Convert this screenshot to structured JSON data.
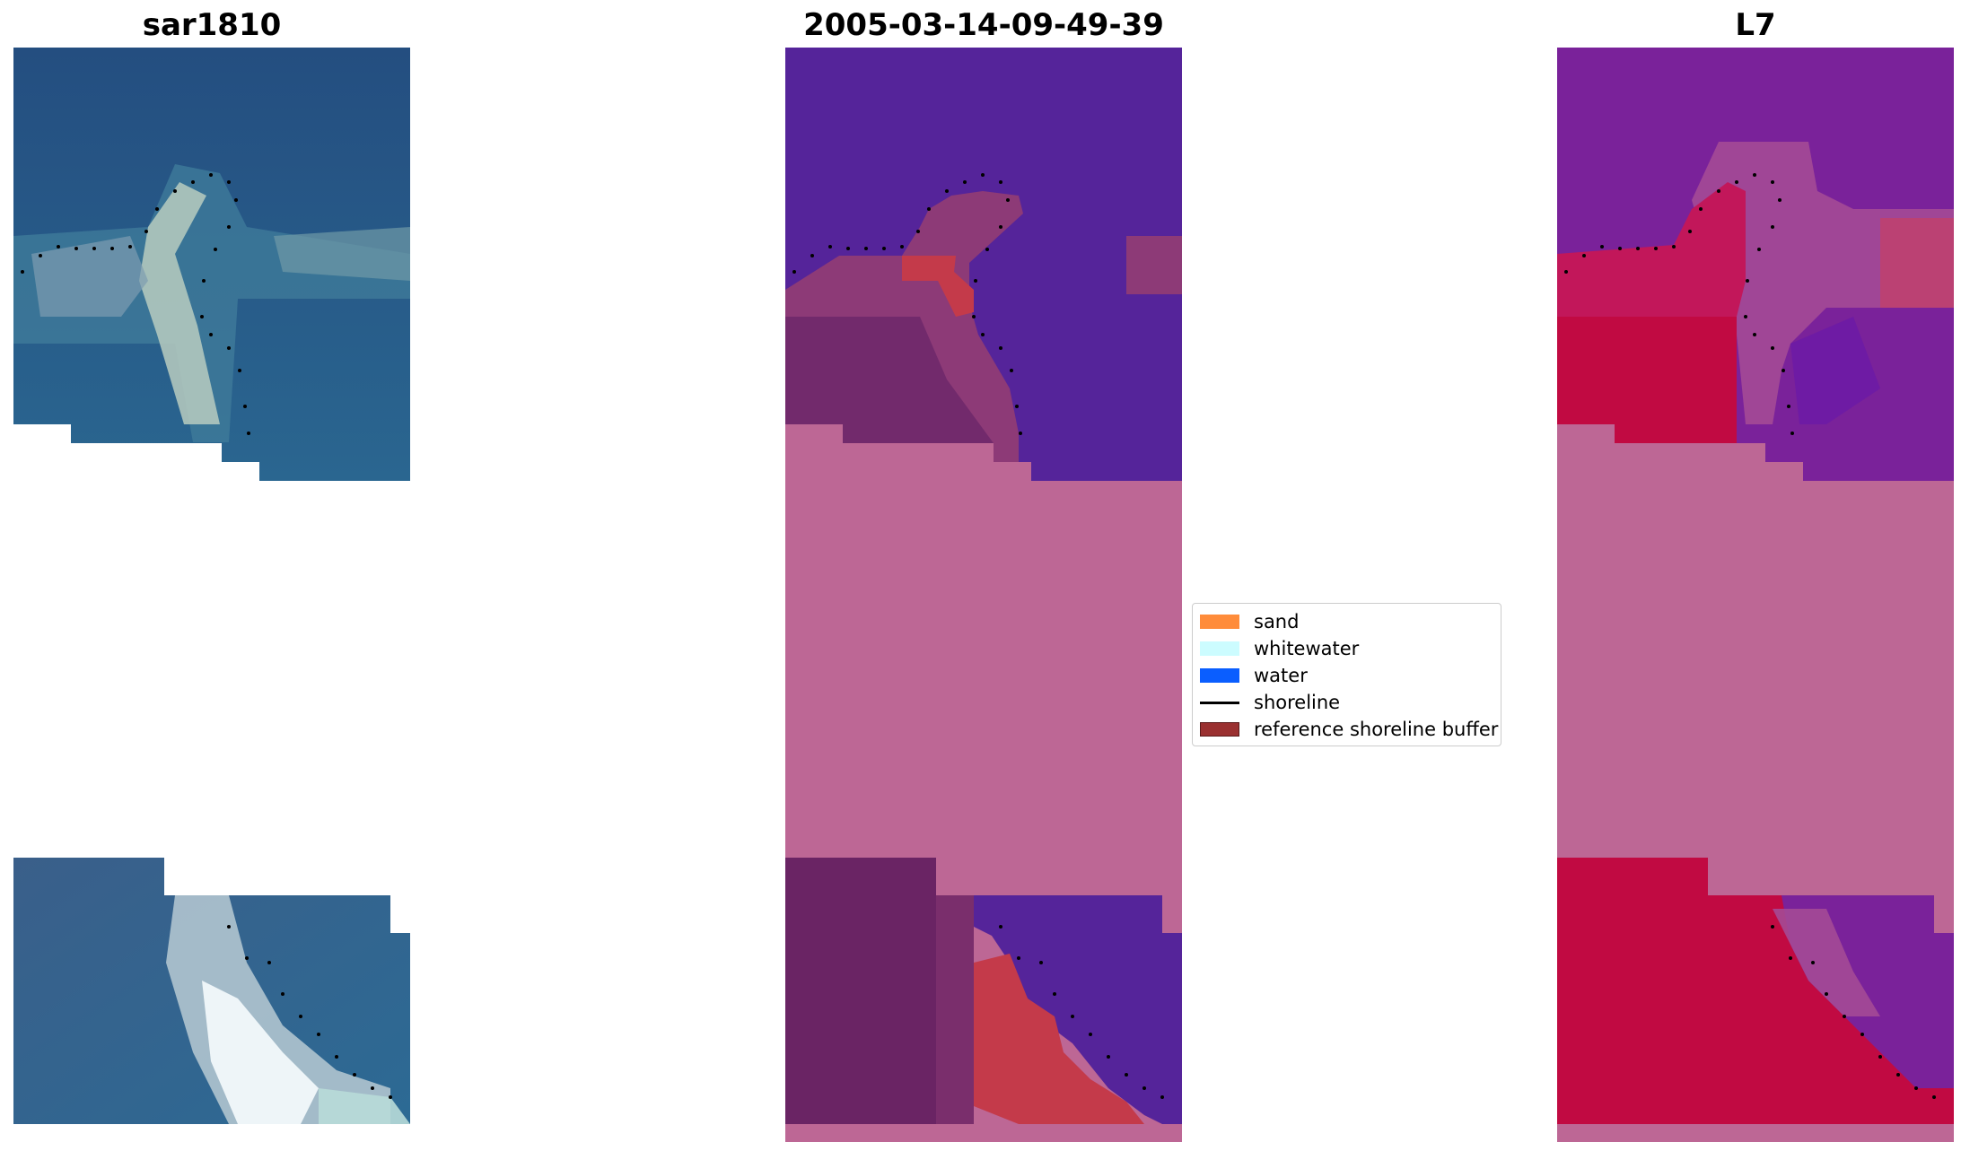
{
  "titles": {
    "left": "sar1810",
    "center": "2005-03-14-09-49-39",
    "right": "L7"
  },
  "legend": {
    "items": [
      {
        "label": "sand",
        "color": "#ff8c3a",
        "kind": "patch"
      },
      {
        "label": "whitewater",
        "color": "#ccfcff",
        "kind": "patch"
      },
      {
        "label": "water",
        "color": "#0a5eff",
        "kind": "patch"
      },
      {
        "label": "shoreline",
        "color": "#000000",
        "kind": "line"
      },
      {
        "label": "reference shoreline buffer",
        "color": "#9a3030",
        "kind": "patch"
      }
    ]
  },
  "colors": {
    "nodata": "#bd6795",
    "classified_water": "#55249a",
    "shoreline_dots": "#000000"
  }
}
